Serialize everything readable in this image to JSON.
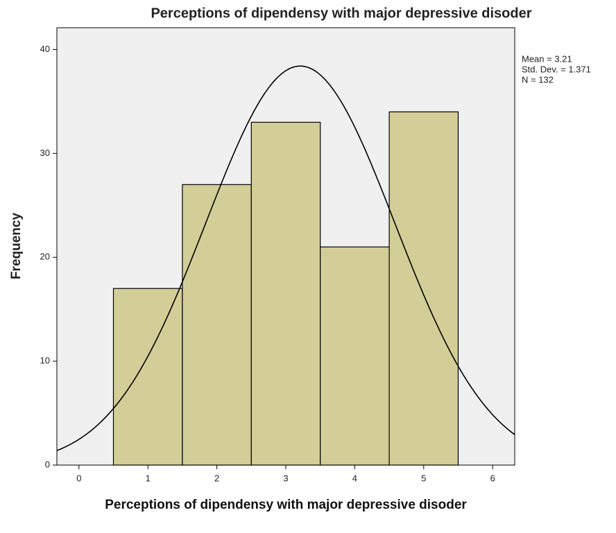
{
  "chart_data": {
    "type": "histogram",
    "title": "Perceptions of dipendensy with major depressive disoder",
    "xlabel": "Perceptions of dipendensy with major depressive disoder",
    "ylabel": "Frequency",
    "bins": [
      0.5,
      1.5,
      2.5,
      3.5,
      4.5,
      5.5
    ],
    "counts": [
      17,
      27,
      33,
      21,
      34
    ],
    "color": "#d3ce97",
    "xlim": [
      -0.32,
      6.32
    ],
    "xticks": [
      0,
      1,
      2,
      3,
      4,
      5,
      6
    ],
    "ylim": [
      0,
      42.1
    ],
    "yticks": [
      0,
      10,
      20,
      30,
      40
    ],
    "mean": {
      "value": 3.21,
      "label": "Mean = 3.21"
    },
    "std": {
      "value": 1.371,
      "label": "Std. Dev. = 1.371"
    },
    "n": {
      "value": 132,
      "label": "N = 132"
    }
  }
}
